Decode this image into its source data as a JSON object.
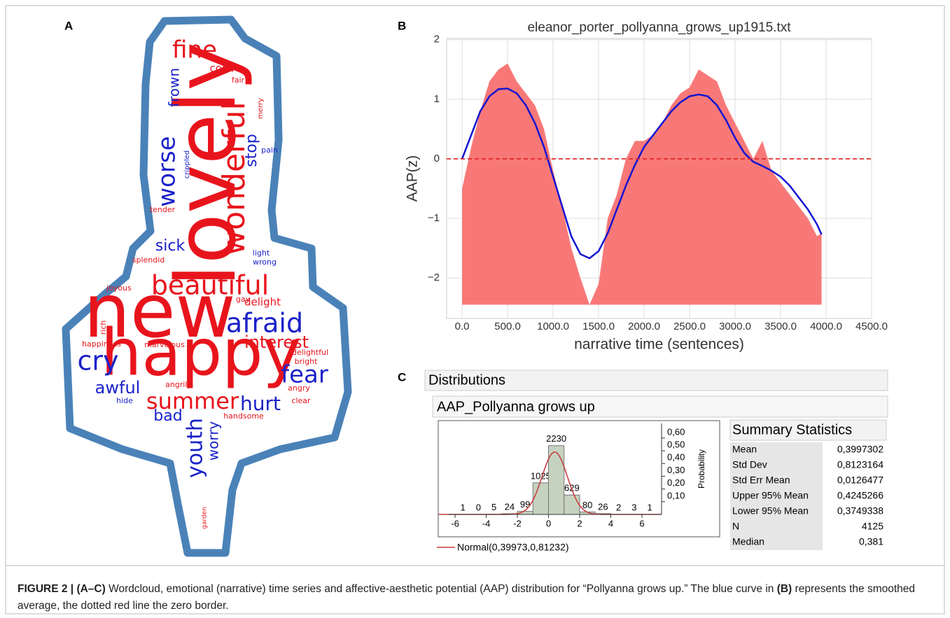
{
  "panel_labels": [
    "A",
    "B",
    "C"
  ],
  "wordcloud": {
    "words": [
      {
        "text": "lovely",
        "color": "#e8141c"
      },
      {
        "text": "new",
        "color": "#e8141c"
      },
      {
        "text": "happy",
        "color": "#e8141c"
      },
      {
        "text": "beautiful",
        "color": "#e8141c"
      },
      {
        "text": "afraid",
        "color": "#1b22c8"
      },
      {
        "text": "wonderful",
        "color": "#e8141c"
      },
      {
        "text": "worse",
        "color": "#1b22c8"
      },
      {
        "text": "fine",
        "color": "#e8141c"
      },
      {
        "text": "cry",
        "color": "#1b22c8"
      },
      {
        "text": "fear",
        "color": "#1b22c8"
      },
      {
        "text": "summer",
        "color": "#e8141c"
      },
      {
        "text": "hurt",
        "color": "#1b22c8"
      },
      {
        "text": "interest",
        "color": "#e8141c"
      },
      {
        "text": "awful",
        "color": "#1b22c8"
      },
      {
        "text": "youth",
        "color": "#1b22c8"
      },
      {
        "text": "worry",
        "color": "#1b22c8"
      },
      {
        "text": "bad",
        "color": "#1b22c8"
      },
      {
        "text": "sick",
        "color": "#1b22c8"
      },
      {
        "text": "stop",
        "color": "#1b22c8"
      },
      {
        "text": "frown",
        "color": "#1b22c8"
      },
      {
        "text": "delight",
        "color": "#e8141c"
      },
      {
        "text": "color",
        "color": "#e8141c"
      },
      {
        "text": "handsome",
        "color": "#e8141c"
      },
      {
        "text": "clear",
        "color": "#e8141c"
      },
      {
        "text": "angry",
        "color": "#e8141c"
      },
      {
        "text": "angrily",
        "color": "#e8141c"
      },
      {
        "text": "hide",
        "color": "#1b22c8"
      },
      {
        "text": "bright",
        "color": "#e8141c"
      },
      {
        "text": "delightful",
        "color": "#e8141c"
      },
      {
        "text": "happiness",
        "color": "#e8141c"
      },
      {
        "text": "marvelous",
        "color": "#e8141c"
      },
      {
        "text": "rich",
        "color": "#e8141c"
      },
      {
        "text": "joyous",
        "color": "#e8141c"
      },
      {
        "text": "splendid",
        "color": "#e8141c"
      },
      {
        "text": "tender",
        "color": "#e8141c"
      },
      {
        "text": "crippled",
        "color": "#1b22c8"
      },
      {
        "text": "pain",
        "color": "#1b22c8"
      },
      {
        "text": "light",
        "color": "#1b22c8"
      },
      {
        "text": "wrong",
        "color": "#1b22c8"
      },
      {
        "text": "gay",
        "color": "#e8141c"
      },
      {
        "text": "merry",
        "color": "#e8141c"
      },
      {
        "text": "fair",
        "color": "#e8141c"
      },
      {
        "text": "garden",
        "color": "#e8141c"
      }
    ]
  },
  "chart_data": [
    {
      "type": "line",
      "title": "eleanor_porter_pollyanna_grows_up1915.txt",
      "xlabel": "narrative time (sentences)",
      "ylabel": "AAP(z)",
      "x": [
        0,
        100,
        200,
        300,
        400,
        500,
        600,
        700,
        800,
        900,
        1000,
        1100,
        1200,
        1300,
        1400,
        1500,
        1600,
        1700,
        1800,
        1900,
        2000,
        2100,
        2200,
        2300,
        2400,
        2500,
        2600,
        2700,
        2800,
        2900,
        3000,
        3100,
        3200,
        3300,
        3400,
        3500,
        3600,
        3700,
        3800,
        3900,
        3950
      ],
      "series": [
        {
          "color": "#f87878",
          "fill": true,
          "values": [
            -0.5,
            0.2,
            0.8,
            1.3,
            1.5,
            1.6,
            1.3,
            1.1,
            0.9,
            0.5,
            -0.2,
            -0.8,
            -1.5,
            -2.0,
            -2.45,
            -2.1,
            -1.0,
            -0.6,
            0.0,
            0.3,
            0.3,
            0.4,
            0.6,
            0.9,
            1.1,
            1.2,
            1.5,
            1.4,
            1.3,
            0.9,
            0.6,
            0.3,
            0.0,
            0.3,
            -0.2,
            -0.4,
            -0.6,
            -0.8,
            -1.0,
            -1.3,
            -1.25
          ]
        },
        {
          "color": "#1414d2",
          "values": [
            0.0,
            0.4,
            0.8,
            1.05,
            1.17,
            1.18,
            1.1,
            0.9,
            0.6,
            0.2,
            -0.3,
            -0.8,
            -1.3,
            -1.6,
            -1.67,
            -1.55,
            -1.25,
            -0.85,
            -0.45,
            -0.1,
            0.2,
            0.4,
            0.6,
            0.8,
            0.95,
            1.05,
            1.08,
            1.05,
            0.9,
            0.65,
            0.35,
            0.1,
            -0.05,
            -0.12,
            -0.2,
            -0.3,
            -0.45,
            -0.65,
            -0.85,
            -1.1,
            -1.27
          ]
        }
      ],
      "hline": {
        "value": 0,
        "color": "#e02020",
        "dash": true
      },
      "xlim": [
        -170,
        4500
      ],
      "xticks": [
        {
          "value": 0,
          "label": "0.0"
        },
        {
          "value": 500,
          "label": "500.0"
        },
        {
          "value": 1000,
          "label": "1000.0"
        },
        {
          "value": 1500,
          "label": "1500.0"
        },
        {
          "value": 2000,
          "label": "2000.0"
        },
        {
          "value": 2500,
          "label": "2500.0"
        },
        {
          "value": 3000,
          "label": "3000.0"
        },
        {
          "value": 3500,
          "label": "3500.0"
        },
        {
          "value": 4000,
          "label": "4000.0"
        },
        {
          "value": 4500,
          "label": "4500.0"
        }
      ],
      "ylim": [
        -2.68,
        2.02
      ],
      "yticks": [
        2,
        1,
        0,
        {
          "value": -1,
          "label": "−1"
        },
        {
          "value": -2,
          "label": "−2"
        }
      ],
      "grid": true
    },
    {
      "type": "histogram",
      "bins": [
        -6,
        -5,
        -4,
        -3,
        -2,
        -1,
        0,
        1,
        2,
        3,
        4,
        5,
        6,
        7
      ],
      "values": [
        1,
        0,
        5,
        24,
        99,
        1025,
        2230,
        629,
        80,
        26,
        2,
        3,
        1
      ],
      "color": "#c6d2c0",
      "xlim": [
        -7.08,
        7.26
      ],
      "xticks": [
        -6,
        -4,
        -2,
        0,
        2,
        4,
        6
      ],
      "ylim": [
        0,
        2950
      ],
      "y2label": "Probability",
      "y2lim": [
        0,
        0.715
      ],
      "y2ticks": [
        {
          "value": 0.1,
          "label": "0,10"
        },
        {
          "value": 0.2,
          "label": "0,20"
        },
        {
          "value": 0.3,
          "label": "0,30"
        },
        {
          "value": 0.4,
          "label": "0,40"
        },
        {
          "value": 0.5,
          "label": "0,50"
        },
        {
          "value": 0.6,
          "label": "0,60"
        }
      ],
      "normal": {
        "label": "Normal(0,39973,0,81232)",
        "mean": 0.39973,
        "sd": 0.81232,
        "color": "#c84040"
      }
    }
  ],
  "distributions": {
    "title": "Distributions",
    "subtitle": "AAP_Pollyanna grows up"
  },
  "summary": {
    "title": "Summary Statistics",
    "rows": [
      [
        "Mean",
        "0,3997302"
      ],
      [
        "Std Dev",
        "0,8123164"
      ],
      [
        "Std Err Mean",
        "0,0126477"
      ],
      [
        "Upper 95% Mean",
        "0,4245266"
      ],
      [
        "Lower 95% Mean",
        "0,3749338"
      ],
      [
        "N",
        "4125"
      ],
      [
        "Median",
        "0,381"
      ]
    ]
  },
  "caption": {
    "label": "FIGURE 2 |",
    "panels": "(A–C)",
    "text": "Wordcloud, emotional (narrative) time series and affective-aesthetic potential (AAP) distribution for “Pollyanna grows up.” The blue curve in",
    "ref": "(B)",
    "text2": "represents the smoothed average, the dotted red line the zero border."
  }
}
